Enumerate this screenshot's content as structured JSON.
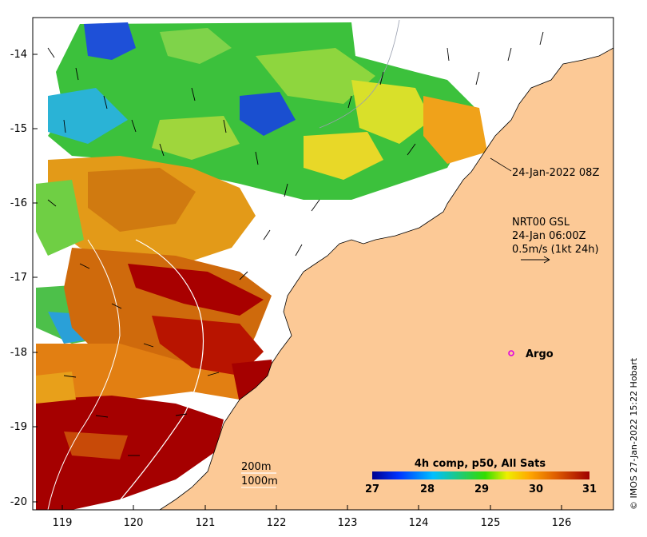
{
  "map": {
    "longitude_ticks": [
      "119",
      "120",
      "121",
      "122",
      "123",
      "124",
      "125",
      "126"
    ],
    "latitude_ticks": [
      "-14",
      "-15",
      "-16",
      "-17",
      "-18",
      "-19",
      "-20"
    ],
    "timestamp_label": "24-Jan-2022 08Z",
    "current_title": "NRT00 GSL",
    "current_time": "24-Jan 06:00Z",
    "current_scale": "0.5m/s (1kt 24h)",
    "argo_label": "Argo",
    "contour_200": "200m",
    "contour_1000": "1000m",
    "colorbar_title": "4h comp, p50, All Sats",
    "colorbar_ticks": [
      "27",
      "28",
      "29",
      "30",
      "31"
    ],
    "credit": "© IMOS 27-Jan-2022 15:22 Hobart",
    "colors": {
      "land": "#fcc996",
      "argo": "#e000e0",
      "sst_hot": "#a00000"
    }
  }
}
